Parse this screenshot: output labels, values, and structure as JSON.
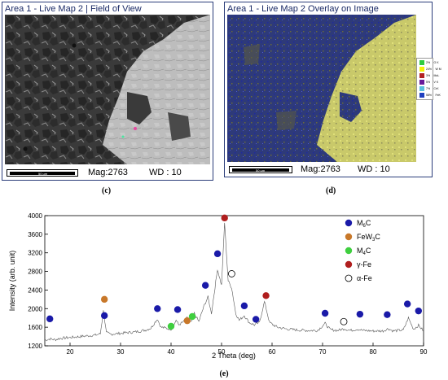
{
  "panel_c": {
    "title": "Area 1 - Live Map 2 | Field of View",
    "mag": "Mag:2763",
    "wd": "WD : 10",
    "scale_text": "50 µm",
    "label": "(c)"
  },
  "panel_d": {
    "title": "Area 1 - Live Map 2 Overlay on Image",
    "mag": "Mag:2763",
    "wd": "WD : 10",
    "scale_text": "50 µm",
    "label": "(d)",
    "legend": [
      {
        "pct": "2%",
        "el": "O K",
        "color": "#2ecc40"
      },
      {
        "pct": "24%",
        "el": "W M",
        "color": "#f2f20a"
      },
      {
        "pct": "3%",
        "el": "MoL",
        "color": "#b22222"
      },
      {
        "pct": "5%",
        "el": "V K",
        "color": "#6a1b9a"
      },
      {
        "pct": "7%",
        "el": "CrK",
        "color": "#5bc0de"
      },
      {
        "pct": "58%",
        "el": "FeK",
        "color": "#1f3fbf"
      }
    ]
  },
  "chart_label": "(e)",
  "chart_data": {
    "type": "line",
    "xlabel": "2 Theta (deg)",
    "ylabel": "Intensity (arb. unit)",
    "xlim": [
      15,
      90
    ],
    "ylim": [
      1200,
      4000
    ],
    "xticks": [
      20,
      30,
      40,
      50,
      60,
      70,
      80,
      90
    ],
    "yticks": [
      1200,
      1600,
      2000,
      2400,
      2800,
      3200,
      3600,
      4000
    ],
    "legend_position": "top-right",
    "legend": [
      {
        "name": "M6C",
        "base": "M",
        "sub": "6",
        "tail": "C",
        "marker": "filled",
        "color": "#1a1aa8"
      },
      {
        "name": "FeW3C",
        "base": "FeW",
        "sub": "3",
        "tail": "C",
        "marker": "filled",
        "color": "#c8782a"
      },
      {
        "name": "M4C",
        "base": "M",
        "sub": "4",
        "tail": "C",
        "marker": "filled",
        "color": "#3fcf3f"
      },
      {
        "name": "γ-Fe",
        "base": "γ-Fe",
        "sub": "",
        "tail": "",
        "marker": "filled",
        "color": "#b01e1e"
      },
      {
        "name": "α-Fe",
        "base": "α-Fe",
        "sub": "",
        "tail": "",
        "marker": "open",
        "color": "#000000"
      }
    ],
    "pattern": [
      [
        15,
        1320
      ],
      [
        16,
        1350
      ],
      [
        17,
        1330
      ],
      [
        18,
        1360
      ],
      [
        19,
        1370
      ],
      [
        20,
        1380
      ],
      [
        21,
        1390
      ],
      [
        22,
        1400
      ],
      [
        23,
        1410
      ],
      [
        24,
        1420
      ],
      [
        25,
        1430
      ],
      [
        26,
        1460
      ],
      [
        26.6,
        1950
      ],
      [
        27.2,
        1480
      ],
      [
        28,
        1450
      ],
      [
        29,
        1460
      ],
      [
        30,
        1470
      ],
      [
        31,
        1480
      ],
      [
        32,
        1490
      ],
      [
        33,
        1500
      ],
      [
        34,
        1520
      ],
      [
        35,
        1540
      ],
      [
        36,
        1580
      ],
      [
        37.3,
        1780
      ],
      [
        38,
        1600
      ],
      [
        39,
        1580
      ],
      [
        40,
        1560
      ],
      [
        40.5,
        1620
      ],
      [
        41,
        1760
      ],
      [
        41.5,
        1650
      ],
      [
        42.5,
        1720
      ],
      [
        43.2,
        1800
      ],
      [
        44,
        1700
      ],
      [
        44.6,
        1900
      ],
      [
        45.5,
        1720
      ],
      [
        46.5,
        2050
      ],
      [
        47.3,
        2250
      ],
      [
        48,
        1900
      ],
      [
        49.2,
        2850
      ],
      [
        50,
        2500
      ],
      [
        50.6,
        3850
      ],
      [
        51.3,
        2600
      ],
      [
        52,
        2450
      ],
      [
        52.8,
        1900
      ],
      [
        53.5,
        1750
      ],
      [
        54.5,
        1850
      ],
      [
        55.5,
        1700
      ],
      [
        56.5,
        1650
      ],
      [
        57.5,
        1700
      ],
      [
        58.5,
        2150
      ],
      [
        59.5,
        1700
      ],
      [
        61,
        1600
      ],
      [
        63,
        1560
      ],
      [
        65,
        1540
      ],
      [
        67,
        1530
      ],
      [
        69,
        1530
      ],
      [
        70.5,
        1680
      ],
      [
        71.5,
        1550
      ],
      [
        73,
        1530
      ],
      [
        74.3,
        1570
      ],
      [
        75.5,
        1530
      ],
      [
        77,
        1560
      ],
      [
        78,
        1530
      ],
      [
        80,
        1520
      ],
      [
        82,
        1520
      ],
      [
        83,
        1570
      ],
      [
        84,
        1520
      ],
      [
        86,
        1540
      ],
      [
        87,
        1800
      ],
      [
        88,
        1560
      ],
      [
        89,
        1640
      ],
      [
        90,
        1520
      ]
    ],
    "markers": [
      {
        "phase": "M6C",
        "x": 16,
        "y": 1780
      },
      {
        "phase": "M6C",
        "x": 26.8,
        "y": 1850
      },
      {
        "phase": "FeW3C",
        "x": 26.8,
        "y": 2200
      },
      {
        "phase": "M6C",
        "x": 37.3,
        "y": 2000
      },
      {
        "phase": "M6C",
        "x": 41.3,
        "y": 1980
      },
      {
        "phase": "M4C",
        "x": 40,
        "y": 1620
      },
      {
        "phase": "FeW3C",
        "x": 43.2,
        "y": 1740
      },
      {
        "phase": "M4C",
        "x": 44.2,
        "y": 1830
      },
      {
        "phase": "M6C",
        "x": 46.8,
        "y": 2500
      },
      {
        "phase": "M6C",
        "x": 49.2,
        "y": 3180
      },
      {
        "phase": "γ-Fe",
        "x": 50.6,
        "y": 3950
      },
      {
        "phase": "α-Fe",
        "x": 52,
        "y": 2750
      },
      {
        "phase": "M6C",
        "x": 54.5,
        "y": 2060
      },
      {
        "phase": "M6C",
        "x": 56.8,
        "y": 1770
      },
      {
        "phase": "γ-Fe",
        "x": 58.8,
        "y": 2280
      },
      {
        "phase": "M6C",
        "x": 70.5,
        "y": 1900
      },
      {
        "phase": "α-Fe",
        "x": 74.2,
        "y": 1720
      },
      {
        "phase": "M6C",
        "x": 77.4,
        "y": 1880
      },
      {
        "phase": "M6C",
        "x": 82.8,
        "y": 1870
      },
      {
        "phase": "M6C",
        "x": 86.8,
        "y": 2100
      },
      {
        "phase": "M6C",
        "x": 89,
        "y": 1950
      }
    ]
  }
}
